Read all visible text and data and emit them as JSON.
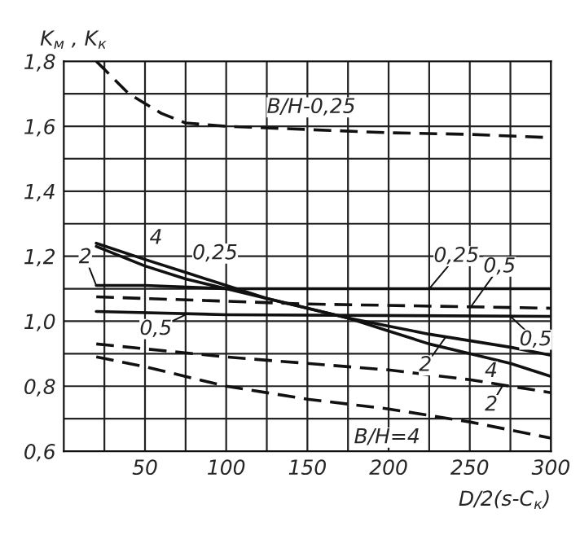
{
  "chart_data": {
    "type": "line",
    "xlabel": "D/2(s-C$_{к}$)",
    "ylabel": "K$_{м}$ , K$_{к}$",
    "xlim": [
      0,
      300
    ],
    "ylim": [
      0.6,
      1.8
    ],
    "xticks": [
      {
        "value": 25,
        "label": null
      },
      50,
      {
        "value": 75,
        "label": null
      },
      100,
      {
        "value": 125,
        "label": null
      },
      150,
      {
        "value": 175,
        "label": null
      },
      200,
      {
        "value": 225,
        "label": null
      },
      250,
      {
        "value": 275,
        "label": null
      },
      300
    ],
    "yticks": [
      {
        "value": 0.6,
        "label": "0,6"
      },
      {
        "value": 0.7,
        "label": null
      },
      {
        "value": 0.8,
        "label": "0,8"
      },
      {
        "value": 0.9,
        "label": null
      },
      {
        "value": 1.0,
        "label": "1,0"
      },
      {
        "value": 1.1,
        "label": null
      },
      {
        "value": 1.2,
        "label": "1,2"
      },
      {
        "value": 1.3,
        "label": null
      },
      {
        "value": 1.4,
        "label": "1,4"
      },
      {
        "value": 1.5,
        "label": null
      },
      {
        "value": 1.6,
        "label": "1,6"
      },
      {
        "value": 1.7,
        "label": null
      },
      {
        "value": 1.8,
        "label": "1,8"
      }
    ],
    "grid": true,
    "series": [
      {
        "color": "#111111",
        "line_style": "dashed",
        "x": [
          20,
          40,
          60,
          75,
          100,
          150,
          200,
          250,
          300
        ],
        "values": [
          1.8,
          1.7,
          1.64,
          1.61,
          1.6,
          1.59,
          1.58,
          1.575,
          1.565
        ]
      },
      {
        "color": "#111111",
        "line_style": "solid",
        "x": [
          20,
          50,
          75,
          100,
          125,
          150,
          175,
          200,
          225,
          250,
          275,
          300
        ],
        "values": [
          1.24,
          1.19,
          1.15,
          1.11,
          1.07,
          1.04,
          1.01,
          0.97,
          0.93,
          0.9,
          0.87,
          0.83
        ]
      },
      {
        "color": "#111111",
        "line_style": "solid",
        "x": [
          20,
          50,
          75,
          100,
          125,
          150,
          175,
          200,
          225,
          250,
          275,
          300
        ],
        "values": [
          1.23,
          1.17,
          1.13,
          1.1,
          1.07,
          1.04,
          1.01,
          0.985,
          0.96,
          0.94,
          0.92,
          0.895
        ]
      },
      {
        "color": "#111111",
        "line_style": "solid",
        "x": [
          20,
          50,
          100,
          300
        ],
        "values": [
          1.11,
          1.11,
          1.1,
          1.1
        ]
      },
      {
        "color": "#111111",
        "line_style": "solid",
        "x": [
          20,
          100,
          300
        ],
        "values": [
          1.03,
          1.02,
          1.015
        ]
      },
      {
        "color": "#111111",
        "line_style": "dashed",
        "x": [
          20,
          150,
          300
        ],
        "values": [
          1.075,
          1.053,
          1.04
        ]
      },
      {
        "color": "#111111",
        "line_style": "dashed",
        "x": [
          20,
          100,
          200,
          250,
          300
        ],
        "values": [
          0.93,
          0.89,
          0.85,
          0.82,
          0.78
        ]
      },
      {
        "color": "#111111",
        "line_style": "dashed",
        "x": [
          20,
          50,
          100,
          150,
          200,
          250,
          300
        ],
        "values": [
          0.89,
          0.86,
          0.8,
          0.76,
          0.73,
          0.69,
          0.64
        ]
      }
    ],
    "annotations": [
      {
        "text": "B/H-0,25",
        "x": 125,
        "y": 1.6
      },
      {
        "text": "4",
        "x": 50,
        "y": 1.19
      },
      {
        "text": "2",
        "x": 20,
        "y": 1.11
      },
      {
        "text": "0,25",
        "x": 75,
        "y": 1.15
      },
      {
        "text": "0,25",
        "x": 225,
        "y": 1.1
      },
      {
        "text": "0,5",
        "x": 250,
        "y": 1.04
      },
      {
        "text": "0,5",
        "x": 75,
        "y": 1.02
      },
      {
        "text": "0,5",
        "x": 275,
        "y": 1.015
      },
      {
        "text": "2",
        "x": 235,
        "y": 0.95
      },
      {
        "text": "4",
        "x": 255,
        "y": 0.89
      },
      {
        "text": "2",
        "x": 270,
        "y": 0.8
      },
      {
        "text": "B/H=4",
        "x": 225,
        "y": 0.7
      }
    ]
  }
}
